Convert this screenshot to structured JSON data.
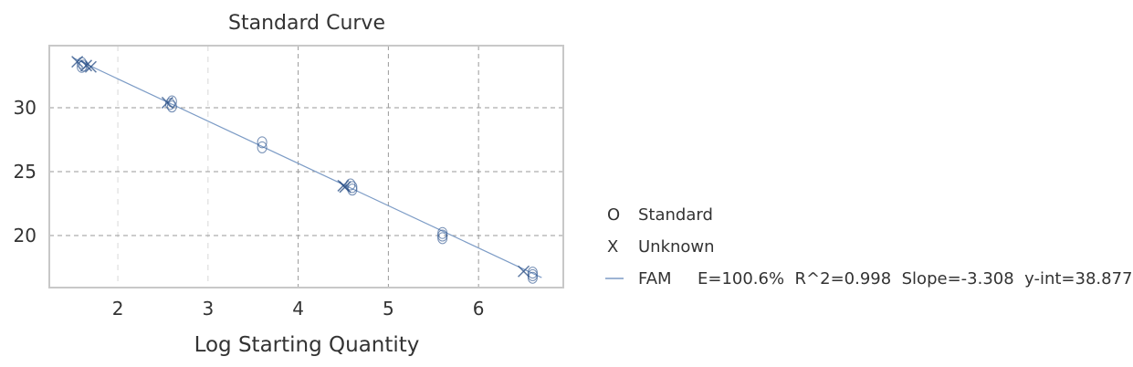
{
  "chart_data": {
    "type": "scatter",
    "title": "Standard Curve",
    "xlabel": "Log Starting Quantity",
    "ylabel": "",
    "xlim": [
      1.24,
      6.94
    ],
    "ylim": [
      15.93,
      34.86
    ],
    "xticks": [
      2,
      3,
      4,
      5,
      6
    ],
    "yticks": [
      20,
      25,
      30
    ],
    "grid": true,
    "legend_placement": "right",
    "series": [
      {
        "name": "Standard",
        "marker": "O",
        "color": "#3b5f95",
        "points": [
          [
            1.6,
            33.2
          ],
          [
            1.6,
            33.5
          ],
          [
            1.62,
            33.3
          ],
          [
            2.6,
            30.1
          ],
          [
            2.6,
            30.5
          ],
          [
            2.58,
            30.3
          ],
          [
            3.6,
            27.3
          ],
          [
            3.6,
            26.9
          ],
          [
            4.6,
            23.8
          ],
          [
            4.58,
            24.0
          ],
          [
            4.6,
            23.6
          ],
          [
            5.6,
            20.0
          ],
          [
            5.6,
            20.2
          ],
          [
            5.6,
            19.8
          ],
          [
            6.6,
            16.9
          ],
          [
            6.6,
            17.1
          ],
          [
            6.6,
            16.7
          ]
        ]
      },
      {
        "name": "Unknown",
        "marker": "X",
        "color": "#2a4f85",
        "points": [
          [
            1.55,
            33.6
          ],
          [
            1.65,
            33.3
          ],
          [
            1.7,
            33.2
          ],
          [
            2.55,
            30.4
          ],
          [
            4.5,
            23.9
          ],
          [
            4.52,
            23.8
          ],
          [
            6.5,
            17.2
          ]
        ]
      }
    ],
    "fit": {
      "name": "FAM",
      "E": "E=100.6%",
      "R2": "R^2=0.998",
      "slope_label": "Slope=-3.308",
      "yint_label": "y-int=38.877",
      "slope": -3.308,
      "intercept": 38.877,
      "x_range": [
        1.5,
        6.7
      ],
      "color": "#7d9cc6"
    }
  },
  "legend": {
    "standard": "Standard",
    "unknown": "Unknown",
    "standard_marker": "O",
    "unknown_marker": "X",
    "fam": "FAM",
    "stats": "E=100.6%  R^2=0.998  Slope=-3.308  y-int=38.877"
  }
}
